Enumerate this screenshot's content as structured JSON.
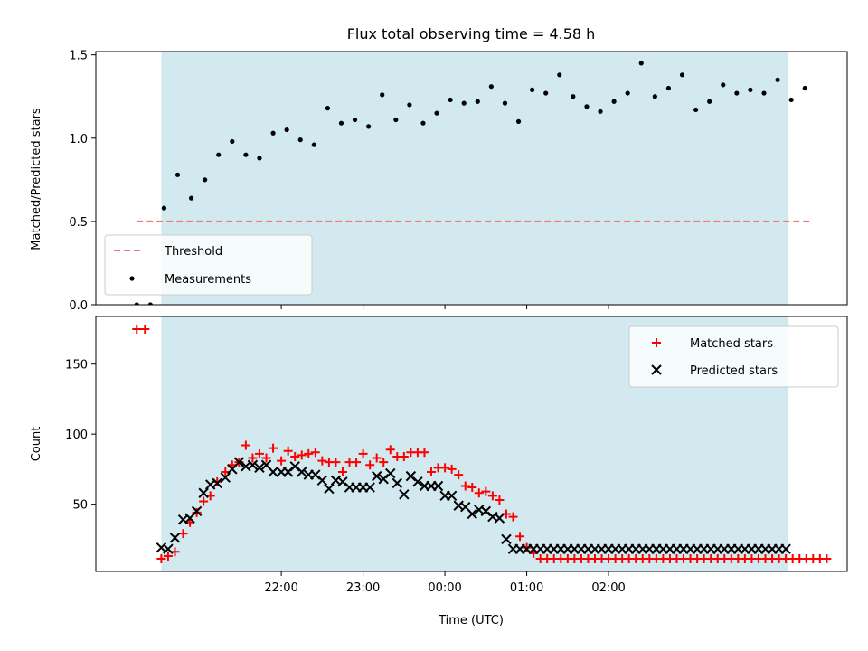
{
  "chart_data": [
    {
      "type": "scatter",
      "title": "Flux total observing time = 4.58 h",
      "ylabel": "Matched/Predicted stars",
      "xlabel": "",
      "x_unit": "minutes relative to 00:00 UTC",
      "xlim": [
        -256,
        295
      ],
      "ylim": [
        0,
        1.52
      ],
      "yticks": [
        0.0,
        0.5,
        1.0,
        1.5
      ],
      "ytick_labels": [
        "0.0",
        "0.5",
        "1.0",
        "1.5"
      ],
      "shaded_span": [
        -208,
        252
      ],
      "shaded_color": "#d2e9f0",
      "threshold": {
        "name": "Threshold",
        "y": 0.5,
        "x_range": [
          -226,
          268
        ],
        "color": "#f07a7a"
      },
      "legend": {
        "position": "lower-left",
        "entries": [
          "Threshold",
          "Measurements"
        ]
      },
      "series": [
        {
          "name": "Measurements",
          "marker": "dot",
          "color": "#000000",
          "x": [
            -226,
            -216,
            -206,
            -196,
            -186,
            -176,
            -166,
            -156,
            -146,
            -136,
            -126,
            -116,
            -106,
            -96,
            -86,
            -76,
            -66,
            -56,
            -46,
            -36,
            -26,
            -16,
            -6,
            4,
            14,
            24,
            34,
            44,
            54,
            64,
            74,
            84,
            94,
            104,
            114,
            124,
            134,
            144,
            154,
            164,
            174,
            184,
            194,
            204,
            214,
            224,
            234,
            244,
            254,
            264
          ],
          "y": [
            0.0,
            0.0,
            0.58,
            0.78,
            0.64,
            0.75,
            0.9,
            0.98,
            0.9,
            0.88,
            1.03,
            1.05,
            0.99,
            0.96,
            1.18,
            1.09,
            1.11,
            1.07,
            1.26,
            1.11,
            1.2,
            1.09,
            1.15,
            1.23,
            1.21,
            1.22,
            1.31,
            1.21,
            1.1,
            1.29,
            1.27,
            1.38,
            1.25,
            1.19,
            1.16,
            1.22,
            1.27,
            1.45,
            1.25,
            1.3,
            1.38,
            1.17,
            1.22,
            1.32,
            1.27,
            1.29,
            1.27,
            1.35,
            1.23,
            1.3
          ]
        }
      ]
    },
    {
      "type": "scatter",
      "title": "",
      "ylabel": "Count",
      "xlabel": "Time (UTC)",
      "x_unit": "minutes relative to 00:00 UTC",
      "xlim": [
        -256,
        295
      ],
      "ylim": [
        2,
        184
      ],
      "yticks": [
        50,
        100,
        150
      ],
      "ytick_labels": [
        "50",
        "100",
        "150"
      ],
      "xticks": [
        -120,
        -60,
        0,
        60,
        120
      ],
      "xtick_labels": [
        "22:00",
        "23:00",
        "00:00",
        "01:00",
        "02:00"
      ],
      "shaded_span": [
        -208,
        252
      ],
      "shaded_color": "#d2e9f0",
      "legend": {
        "position": "top-right",
        "entries": [
          "Matched stars",
          "Predicted stars"
        ]
      },
      "series": [
        {
          "name": "Matched stars",
          "marker": "plus",
          "color": "#ff0000",
          "x": [
            -226,
            -220,
            -208,
            -203,
            -198,
            -192,
            -187,
            -182,
            -177,
            -172,
            -167,
            -161,
            -156,
            -151,
            -146,
            -141,
            -136,
            -131,
            -126,
            -120,
            -115,
            -110,
            -105,
            -100,
            -95,
            -90,
            -85,
            -80,
            -75,
            -70,
            -65,
            -60,
            -55,
            -50,
            -45,
            -40,
            -35,
            -30,
            -25,
            -20,
            -15,
            -10,
            -5,
            0,
            5,
            10,
            15,
            20,
            25,
            30,
            35,
            40,
            45,
            50,
            55,
            60,
            65,
            70,
            75,
            80,
            85,
            90,
            95,
            100,
            105,
            110,
            115,
            120,
            125,
            130,
            135,
            140,
            145,
            150,
            155,
            160,
            165,
            170,
            175,
            180,
            185,
            190,
            195,
            200,
            205,
            210,
            215,
            220,
            225,
            230,
            235,
            240,
            245,
            250,
            255,
            260,
            265,
            270,
            275,
            280
          ],
          "y": [
            175,
            175,
            11,
            13,
            16,
            29,
            37,
            44,
            52,
            56,
            66,
            73,
            78,
            80,
            92,
            83,
            86,
            83,
            90,
            81,
            88,
            84,
            85,
            86,
            87,
            81,
            80,
            80,
            73,
            80,
            80,
            86,
            78,
            83,
            80,
            89,
            84,
            84,
            87,
            87,
            87,
            73,
            76,
            76,
            75,
            71,
            63,
            62,
            58,
            59,
            56,
            53,
            43,
            41,
            27,
            19,
            15,
            11,
            11,
            11,
            11,
            11,
            11,
            11,
            11,
            11,
            11,
            11,
            11,
            11,
            11,
            11,
            11,
            11,
            11,
            11,
            11,
            11,
            11,
            11,
            11,
            11,
            11,
            11,
            11,
            11,
            11,
            11,
            11,
            11,
            11,
            11,
            11,
            11,
            11,
            11,
            11,
            11,
            11,
            11
          ]
        },
        {
          "name": "Predicted stars",
          "marker": "x",
          "color": "#000000",
          "x": [
            -208,
            -203,
            -198,
            -192,
            -187,
            -182,
            -177,
            -172,
            -167,
            -161,
            -156,
            -151,
            -146,
            -141,
            -136,
            -131,
            -126,
            -120,
            -115,
            -110,
            -105,
            -100,
            -95,
            -90,
            -85,
            -80,
            -75,
            -70,
            -65,
            -60,
            -55,
            -50,
            -45,
            -40,
            -35,
            -30,
            -25,
            -20,
            -15,
            -10,
            -5,
            0,
            5,
            10,
            15,
            20,
            25,
            30,
            35,
            40,
            45,
            50,
            55,
            60,
            65,
            70,
            75,
            80,
            85,
            90,
            95,
            100,
            105,
            110,
            115,
            120,
            125,
            130,
            135,
            140,
            145,
            150,
            155,
            160,
            165,
            170,
            175,
            180,
            185,
            190,
            195,
            200,
            205,
            210,
            215,
            220,
            225,
            230,
            235,
            240,
            245,
            250
          ],
          "y": [
            19,
            18,
            26,
            39,
            40,
            45,
            58,
            64,
            65,
            69,
            75,
            80,
            77,
            78,
            76,
            78,
            73,
            73,
            73,
            77,
            73,
            71,
            71,
            67,
            61,
            67,
            66,
            62,
            62,
            62,
            62,
            70,
            68,
            72,
            65,
            57,
            70,
            66,
            63,
            63,
            63,
            56,
            56,
            49,
            48,
            43,
            46,
            45,
            41,
            40,
            25,
            18,
            18,
            18,
            18,
            18,
            18,
            18,
            18,
            18,
            18,
            18,
            18,
            18,
            18,
            18,
            18,
            18,
            18,
            18,
            18,
            18,
            18,
            18,
            18,
            18,
            18,
            18,
            18,
            18,
            18,
            18,
            18,
            18,
            18,
            18,
            18,
            18,
            18,
            18,
            18,
            18
          ]
        }
      ]
    }
  ]
}
